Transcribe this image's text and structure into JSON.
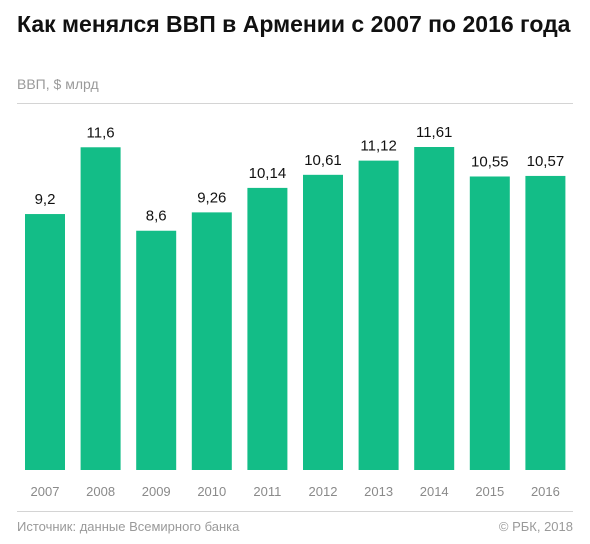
{
  "header": {
    "title": "Как менялся ВВП в Армении с 2007 по 2016 года",
    "subtitle": "ВВП, $ млрд"
  },
  "footer": {
    "source": "Источник: данные Всемирного банка",
    "copyright": "© РБК, 2018"
  },
  "colors": {
    "bar": "#13bd87",
    "tick_label": "#8a8a8a",
    "value_label": "#111111",
    "rule": "#d4d4d4"
  },
  "chart_data": {
    "type": "bar",
    "title": "Как менялся ВВП в Армении с 2007 по 2016 года",
    "ylabel": "ВВП, $ млрд",
    "categories": [
      "2007",
      "2008",
      "2009",
      "2010",
      "2011",
      "2012",
      "2013",
      "2014",
      "2015",
      "2016"
    ],
    "values": [
      9.2,
      11.6,
      8.6,
      9.26,
      10.14,
      10.61,
      11.12,
      11.61,
      10.55,
      10.57
    ],
    "value_labels": [
      "9,2",
      "11,6",
      "8,6",
      "9,26",
      "10,14",
      "10,61",
      "11,12",
      "11,61",
      "10,55",
      "10,57"
    ],
    "ylim": [
      0,
      11.61
    ],
    "grid": false,
    "legend": "none"
  }
}
